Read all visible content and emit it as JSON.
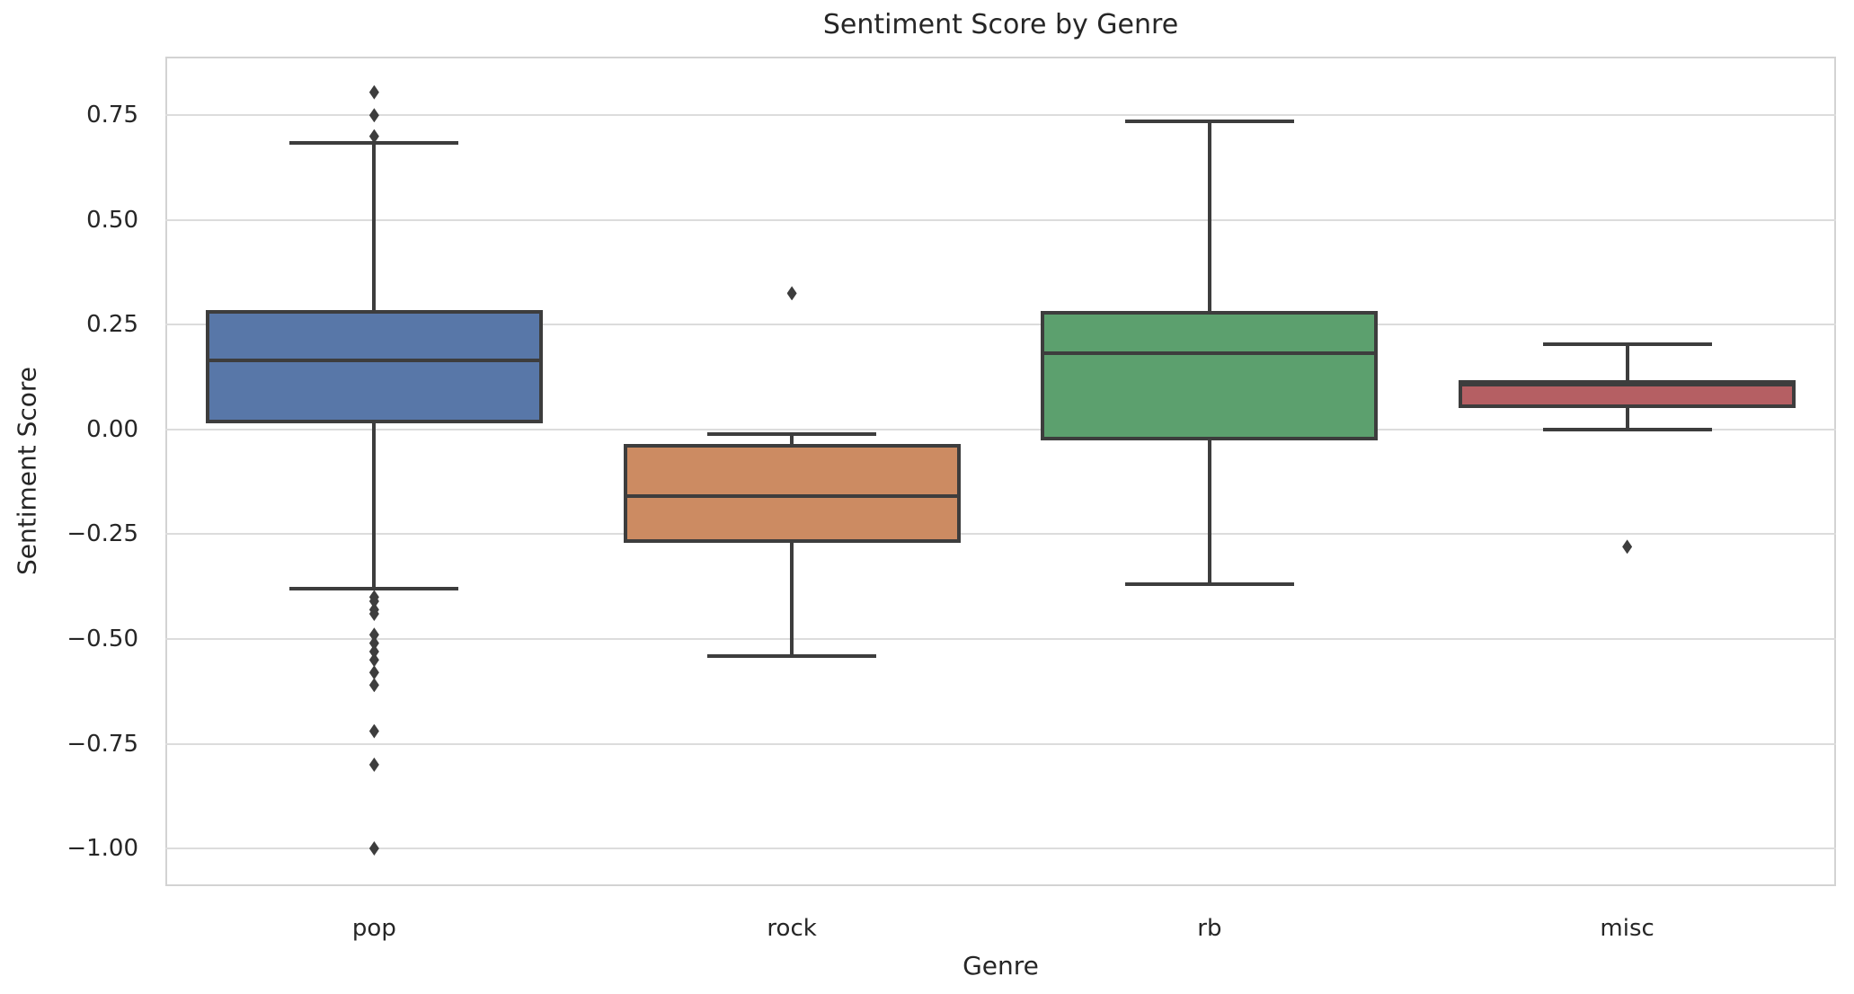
{
  "title": "Sentiment Score by Genre",
  "chart_data": {
    "type": "boxplot",
    "title": "Sentiment Score by Genre",
    "xlabel": "Genre",
    "ylabel": "Sentiment Score",
    "categories": [
      "pop",
      "rock",
      "rb",
      "misc"
    ],
    "ylim": [
      -1.09,
      0.89
    ],
    "yticks": [
      0.75,
      0.5,
      0.25,
      0.0,
      -0.25,
      -0.5,
      -0.75,
      -1.0
    ],
    "ytick_labels": [
      "0.75",
      "0.50",
      "0.25",
      "0.00",
      "−0.25",
      "−0.50",
      "−0.75",
      "−1.00"
    ],
    "grid": true,
    "legend": false,
    "series": [
      {
        "name": "pop",
        "color": "#5877A8",
        "whisker_low": -0.38,
        "q1": 0.015,
        "median": 0.165,
        "q3": 0.285,
        "whisker_high": 0.685,
        "outliers": [
          0.805,
          0.75,
          0.7,
          -0.4,
          -0.41,
          -0.43,
          -0.44,
          -0.49,
          -0.51,
          -0.53,
          -0.55,
          -0.58,
          -0.61,
          -0.72,
          -0.8,
          -1.0
        ]
      },
      {
        "name": "rock",
        "color": "#CC8B62",
        "whisker_low": -0.54,
        "q1": -0.27,
        "median": -0.16,
        "q3": -0.035,
        "whisker_high": -0.01,
        "outliers": [
          0.325
        ]
      },
      {
        "name": "rb",
        "color": "#5CA06E",
        "whisker_low": -0.37,
        "q1": -0.027,
        "median": 0.183,
        "q3": 0.282,
        "whisker_high": 0.735,
        "outliers": []
      },
      {
        "name": "misc",
        "color": "#B55F63",
        "whisker_low": 0.0,
        "q1": 0.052,
        "median": 0.106,
        "q3": 0.117,
        "whisker_high": 0.203,
        "outliers": [
          -0.28
        ]
      }
    ],
    "style": {
      "line_color": "#3d3d3d",
      "grid_color": "#dcdcdc",
      "spine_color": "#d3d3d3",
      "text_color": "#262626",
      "background": "#ffffff"
    }
  }
}
